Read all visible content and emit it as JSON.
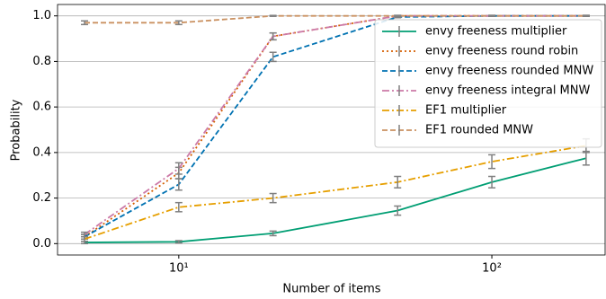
{
  "chart_data": {
    "type": "line",
    "xlabel": "Number of items",
    "ylabel": "Probability",
    "x": [
      5,
      10,
      20,
      50,
      100,
      200
    ],
    "xscale": "log",
    "xlim": [
      4.1,
      230
    ],
    "xticks": [
      {
        "value": 10,
        "label": "10¹"
      },
      {
        "value": 100,
        "label": "10²"
      }
    ],
    "ylim": [
      -0.05,
      1.05
    ],
    "yticks": [
      {
        "value": 0,
        "label": "0.0"
      },
      {
        "value": 0.2,
        "label": "0.2"
      },
      {
        "value": 0.4,
        "label": "0.4"
      },
      {
        "value": 0.6,
        "label": "0.6"
      },
      {
        "value": 0.8,
        "label": "0.8"
      },
      {
        "value": 1,
        "label": "1.0"
      }
    ],
    "grid": "y",
    "legend": "upper right",
    "error_color": "#808080",
    "series": [
      {
        "name": "envy freeness multiplier",
        "color": "#009e73",
        "dash": "solid",
        "values": [
          0.005,
          0.008,
          0.045,
          0.145,
          0.27,
          0.375
        ],
        "errors": [
          0.005,
          0.005,
          0.01,
          0.02,
          0.025,
          0.03
        ]
      },
      {
        "name": "envy freeness round robin",
        "color": "#d55e00",
        "dash": "dotted",
        "values": [
          0.03,
          0.31,
          0.91,
          1.0,
          1.0,
          1.0
        ],
        "errors": [
          0.01,
          0.025,
          0.015,
          0.002,
          0.002,
          0.002
        ]
      },
      {
        "name": "envy freeness rounded MNW",
        "color": "#0072b2",
        "dash": "dashed",
        "values": [
          0.03,
          0.26,
          0.82,
          0.995,
          1.0,
          1.0
        ],
        "errors": [
          0.01,
          0.025,
          0.02,
          0.003,
          0.002,
          0.002
        ]
      },
      {
        "name": "envy freeness integral MNW",
        "color": "#cc79a7",
        "dash": "dashdot",
        "values": [
          0.04,
          0.33,
          0.91,
          1.0,
          1.0,
          1.0
        ],
        "errors": [
          0.01,
          0.025,
          0.015,
          0.002,
          0.002,
          0.002
        ]
      },
      {
        "name": "EF1 multiplier",
        "color": "#e69f00",
        "dash": "dashdot",
        "values": [
          0.02,
          0.16,
          0.2,
          0.27,
          0.36,
          0.43
        ],
        "errors": [
          0.01,
          0.02,
          0.02,
          0.025,
          0.03,
          0.03
        ]
      },
      {
        "name": "EF1 rounded MNW",
        "color": "#ca9161",
        "dash": "dashed",
        "values": [
          0.97,
          0.97,
          1.0,
          1.0,
          1.0,
          1.0
        ],
        "errors": [
          0.008,
          0.008,
          0.002,
          0.002,
          0.002,
          0.002
        ]
      }
    ]
  }
}
